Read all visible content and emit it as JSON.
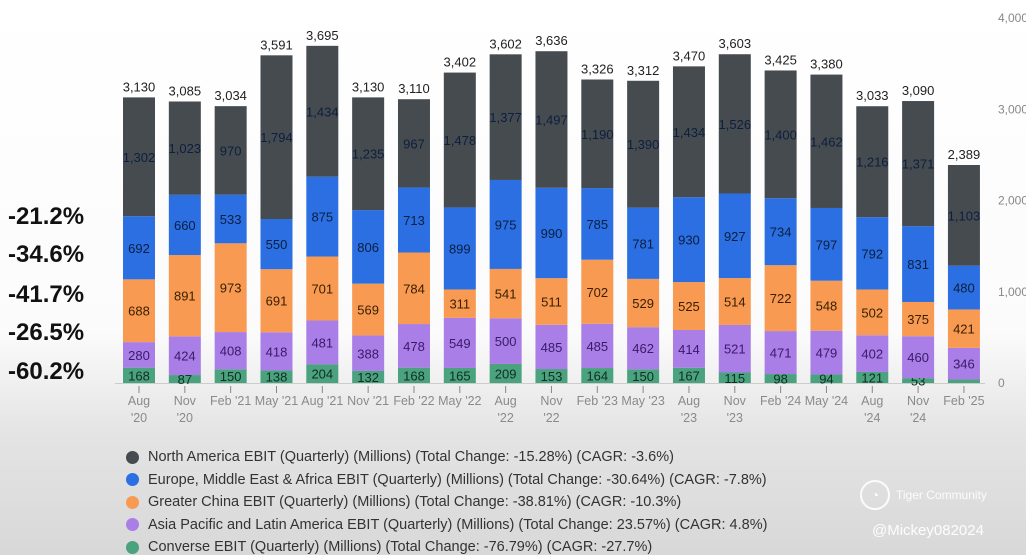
{
  "chart_data": {
    "type": "bar",
    "stacked": true,
    "categories": [
      "Aug '20",
      "Nov '20",
      "Feb '21",
      "May '21",
      "Aug '21",
      "Nov '21",
      "Feb '22",
      "May '22",
      "Aug '22",
      "Nov '22",
      "Feb '23",
      "May '23",
      "Aug '23",
      "Nov '23",
      "Feb '24",
      "May '24",
      "Aug '24",
      "Nov '24",
      "Feb '25"
    ],
    "totals": [
      3130,
      3085,
      3034,
      3591,
      3695,
      3130,
      3110,
      3402,
      3602,
      3636,
      3326,
      3312,
      3470,
      3603,
      3425,
      3380,
      3033,
      3090,
      2389
    ],
    "series": [
      {
        "name": "Converse EBIT (Quarterly) (Millions) (Total Change: -76.79%) (CAGR: -27.7%)",
        "color": "#4aa27f",
        "values": [
          168,
          87,
          150,
          138,
          204,
          132,
          168,
          165,
          209,
          153,
          164,
          150,
          167,
          115,
          98,
          94,
          121,
          53,
          39
        ]
      },
      {
        "name": "Asia Pacific and Latin America EBIT (Quarterly) (Millions) (Total Change: 23.57%) (CAGR: 4.8%)",
        "color": "#a97ee6",
        "values": [
          280,
          424,
          408,
          418,
          481,
          388,
          478,
          549,
          500,
          485,
          485,
          462,
          414,
          521,
          471,
          479,
          402,
          460,
          346
        ]
      },
      {
        "name": "Greater China EBIT (Quarterly) (Millions) (Total Change: -38.81%) (CAGR: -10.3%)",
        "color": "#f89a52",
        "values": [
          688,
          891,
          973,
          691,
          701,
          569,
          784,
          311,
          541,
          511,
          702,
          529,
          525,
          514,
          722,
          548,
          502,
          375,
          421
        ]
      },
      {
        "name": "Europe, Middle East & Africa EBIT (Quarterly) (Millions) (Total Change: -30.64%) (CAGR: -7.8%)",
        "color": "#2b6fe3",
        "values": [
          692,
          660,
          533,
          550,
          875,
          806,
          713,
          899,
          975,
          990,
          785,
          781,
          930,
          927,
          734,
          797,
          792,
          831,
          480
        ]
      },
      {
        "name": "North America EBIT (Quarterly) (Millions) (Total Change: -15.28%) (CAGR: -3.6%)",
        "color": "#464b50",
        "values": [
          1302,
          1023,
          970,
          1794,
          1434,
          1235,
          967,
          1478,
          1377,
          1497,
          1190,
          1390,
          1434,
          1526,
          1400,
          1462,
          1216,
          1371,
          1103
        ]
      }
    ],
    "ylim": [
      0,
      4000
    ],
    "yticks": [
      "0",
      "1,000",
      "2,000",
      "3,000",
      "4,000"
    ],
    "yaxis_side": "right",
    "legend_position": "bottom",
    "grid": false
  },
  "legend_order": [
    4,
    3,
    2,
    1,
    0
  ],
  "side_percentages": [
    "-21.2%",
    "-34.6%",
    "-41.7%",
    "-26.5%",
    "-60.2%"
  ],
  "watermark": {
    "brand": "Tiger Community",
    "handle": "@Mickey082024"
  }
}
